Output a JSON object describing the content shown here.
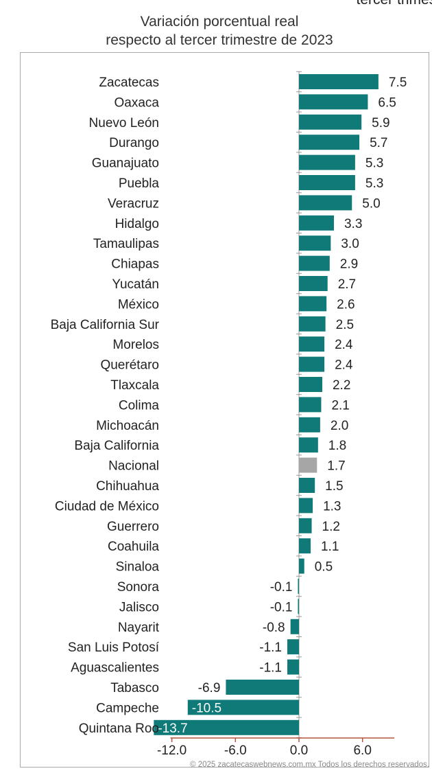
{
  "corner_fragment": "tercer trimest",
  "watermark": "© 2025 zacatecaswebnews.com.mx Todos los derechos reservados.",
  "colors": {
    "bar": "#0f7a78",
    "highlight": "#a6a6a6",
    "axis": "#b5533c",
    "value_on_bar": "#ffffff"
  },
  "chart_data": {
    "type": "bar",
    "orientation": "horizontal",
    "title": "Variación porcentual real",
    "subtitle": "respecto al tercer trimestre de 2023",
    "xlim": [
      -12.0,
      9.0
    ],
    "xticks": [
      -12.0,
      -6.0,
      0.0,
      6.0
    ],
    "xtick_labels": [
      "-12.0",
      "-6.0",
      "0.0",
      "6.0"
    ],
    "highlight_category": "Nacional",
    "categories": [
      "Zacatecas",
      "Oaxaca",
      "Nuevo León",
      "Durango",
      "Guanajuato",
      "Puebla",
      "Veracruz",
      "Hidalgo",
      "Tamaulipas",
      "Chiapas",
      "Yucatán",
      "México",
      "Baja California Sur",
      "Morelos",
      "Querétaro",
      "Tlaxcala",
      "Colima",
      "Michoacán",
      "Baja California",
      "Nacional",
      "Chihuahua",
      "Ciudad de México",
      "Guerrero",
      "Coahuila",
      "Sinaloa",
      "Sonora",
      "Jalisco",
      "Nayarit",
      "San Luis Potosí",
      "Aguascalientes",
      "Tabasco",
      "Campeche",
      "Quintana Roo"
    ],
    "values": [
      7.5,
      6.5,
      5.9,
      5.7,
      5.3,
      5.3,
      5.0,
      3.3,
      3.0,
      2.9,
      2.7,
      2.6,
      2.5,
      2.4,
      2.4,
      2.2,
      2.1,
      2.0,
      1.8,
      1.7,
      1.5,
      1.3,
      1.2,
      1.1,
      0.5,
      -0.1,
      -0.1,
      -0.8,
      -1.1,
      -1.1,
      -6.9,
      -10.5,
      -13.7
    ],
    "value_labels": [
      "7.5",
      "6.5",
      "5.9",
      "5.7",
      "5.3",
      "5.3",
      "5.0",
      "3.3",
      "3.0",
      "2.9",
      "2.7",
      "2.6",
      "2.5",
      "2.4",
      "2.4",
      "2.2",
      "2.1",
      "2.0",
      "1.8",
      "1.7",
      "1.5",
      "1.3",
      "1.2",
      "1.1",
      "0.5",
      "-0.1",
      "-0.1",
      "-0.8",
      "-1.1",
      "-1.1",
      "-6.9",
      "-10.5",
      "-13.7"
    ],
    "grid": false,
    "legend": "none"
  }
}
